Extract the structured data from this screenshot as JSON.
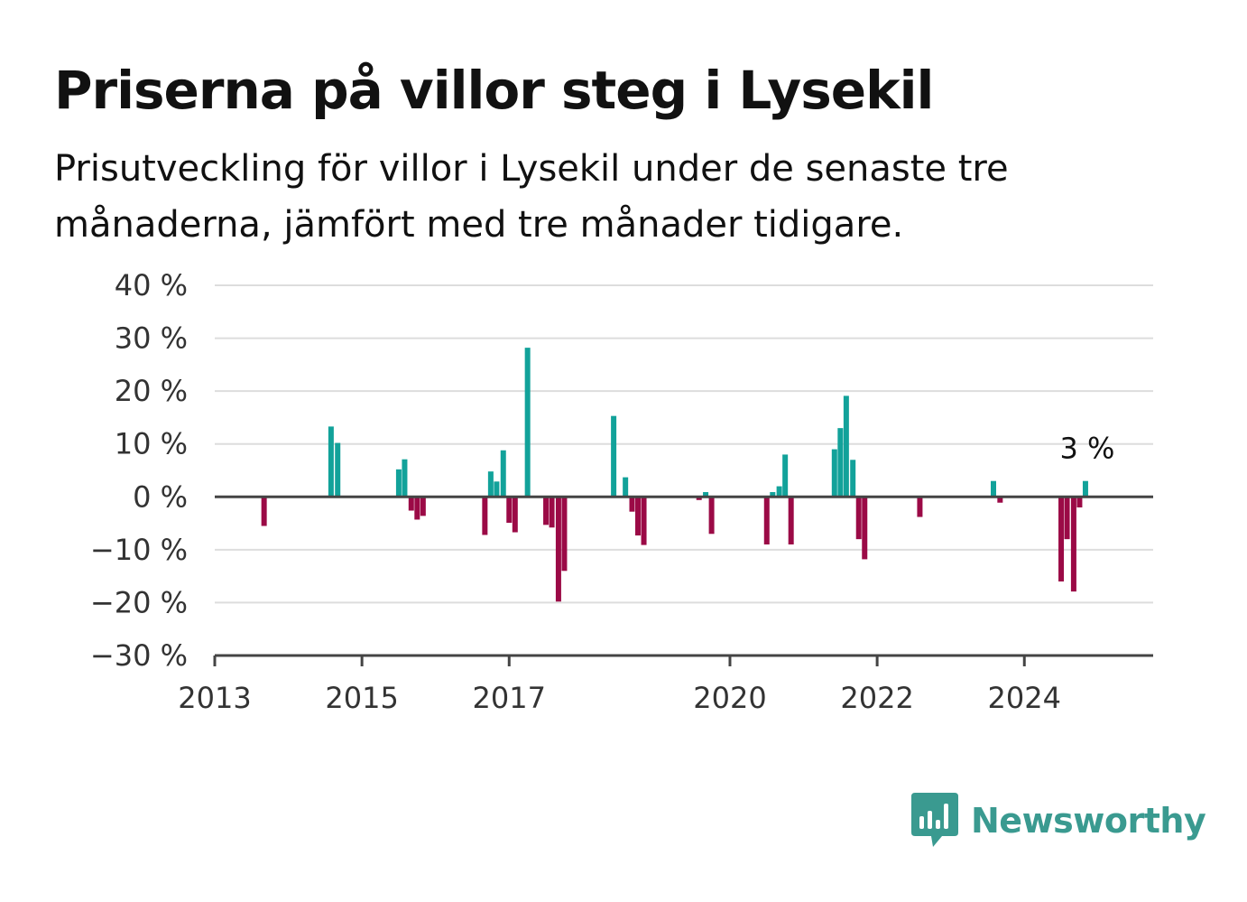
{
  "title": "Priserna på villor steg i Lysekil",
  "subtitle": "Prisutveckling för villor i Lysekil under de senaste tre månaderna, jämfört med tre månader tidigare.",
  "brand": {
    "name": "Newsworthy",
    "icon": "newsworthy-logo-icon",
    "color": "#3a9a90"
  },
  "colors": {
    "positive": "#12a29a",
    "negative": "#9b0a46",
    "grid": "#dddddd",
    "axis": "#444444"
  },
  "chart_data": {
    "type": "bar",
    "title": "Priserna på villor steg i Lysekil",
    "xlabel": "",
    "ylabel": "",
    "xlim": [
      2013.0,
      2025.75
    ],
    "ylim": [
      -30,
      40
    ],
    "y_ticks": [
      40,
      30,
      20,
      10,
      0,
      -10,
      -20,
      -30
    ],
    "y_tick_labels": [
      "40 %",
      "30 %",
      "20 %",
      "10 %",
      "0 %",
      "−10 %",
      "−20 %",
      "−30 %"
    ],
    "x_ticks": [
      2013,
      2015,
      2017,
      2020,
      2022,
      2024
    ],
    "x_tick_labels": [
      "2013",
      "2015",
      "2017",
      "2020",
      "2022",
      "2024"
    ],
    "grid": true,
    "series": [
      {
        "x": [
          2013.67,
          2014.58,
          2014.67,
          2015.5,
          2015.58,
          2015.67,
          2015.75,
          2015.83,
          2016.67,
          2016.75,
          2016.83,
          2016.92,
          2017.0,
          2017.08,
          2017.25,
          2017.5,
          2017.58,
          2017.67,
          2017.75,
          2018.42,
          2018.58,
          2018.67,
          2018.75,
          2018.83,
          2019.58,
          2019.67,
          2019.75,
          2020.5,
          2020.58,
          2020.67,
          2020.75,
          2020.83,
          2021.42,
          2021.5,
          2021.58,
          2021.67,
          2021.75,
          2021.83,
          2022.58,
          2023.58,
          2023.67,
          2024.5,
          2024.58,
          2024.67,
          2024.75,
          2024.83
        ],
        "values": [
          -5.5,
          13.3,
          10.2,
          5.2,
          7.1,
          -2.6,
          -4.3,
          -3.6,
          -7.2,
          4.8,
          2.9,
          8.8,
          -4.9,
          -6.7,
          28.2,
          -5.3,
          -5.8,
          -19.8,
          -14.0,
          15.3,
          3.7,
          -2.8,
          -7.3,
          -9.1,
          -0.6,
          0.9,
          -7.0,
          -9.0,
          0.9,
          2.0,
          8.0,
          -9.0,
          9.0,
          13.0,
          19.1,
          7.0,
          -8.0,
          -11.8,
          -3.8,
          3.0,
          -1.1,
          -16.0,
          -8.0,
          -17.9,
          -2.0,
          3.0
        ]
      }
    ],
    "annotations": [
      {
        "x": 2024.83,
        "y": 3.0,
        "text": "3 %"
      }
    ]
  }
}
